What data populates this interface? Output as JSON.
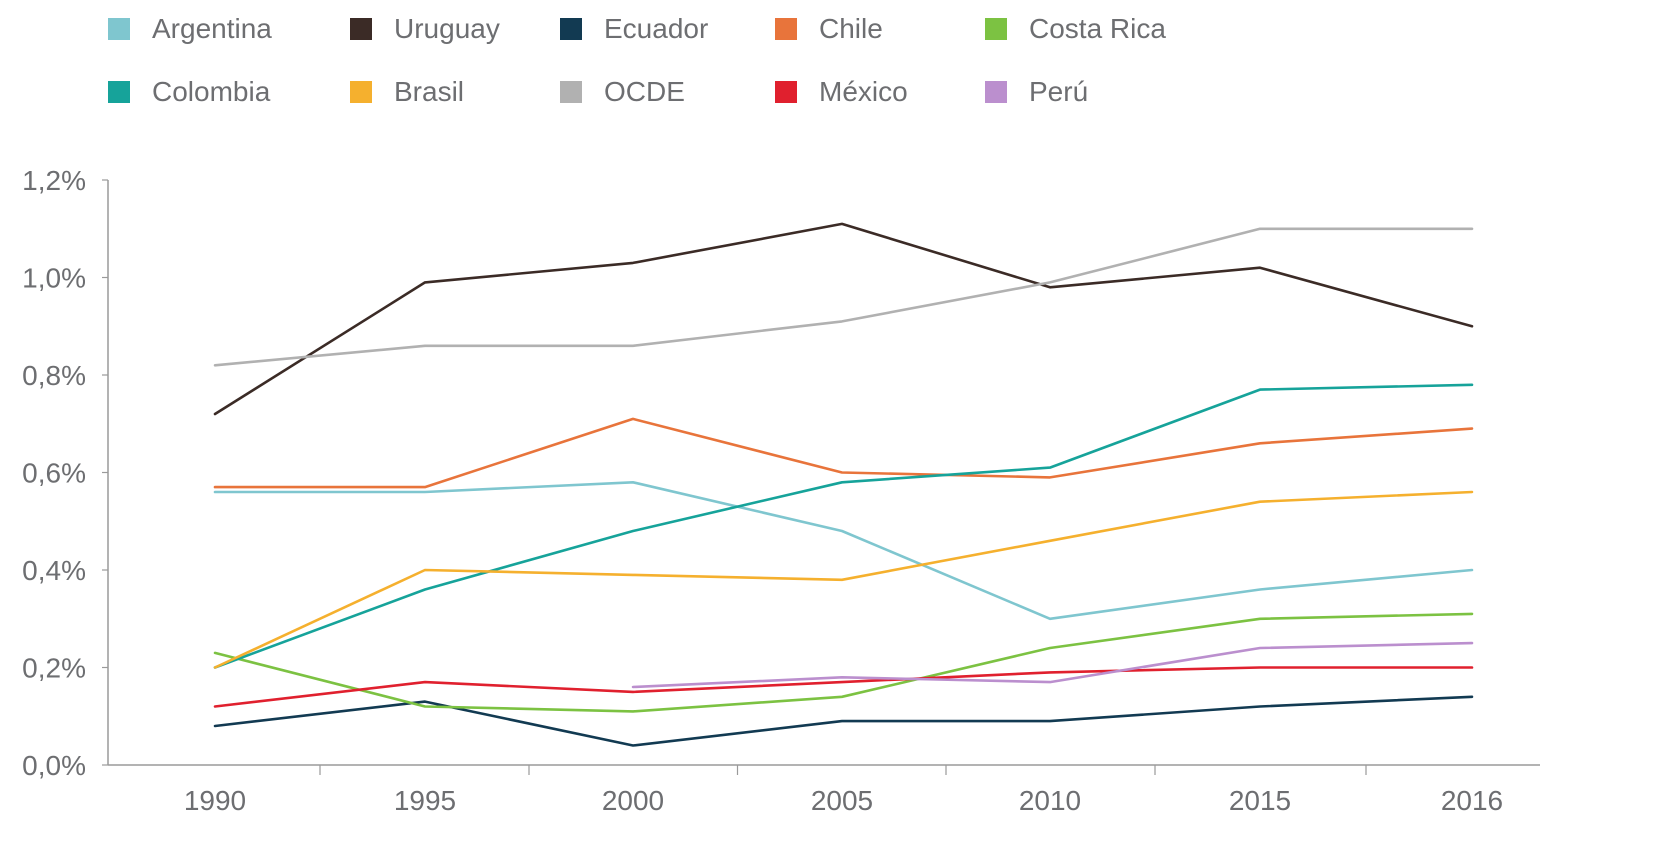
{
  "chart_data": {
    "type": "line",
    "title": "",
    "xlabel": "",
    "ylabel": "",
    "x": [
      "1990",
      "1995",
      "2000",
      "2005",
      "2010",
      "2015",
      "2016"
    ],
    "ylim": [
      0,
      1.2
    ],
    "yticks": [
      "0,0%",
      "0,2%",
      "0,4%",
      "0,6%",
      "0,8%",
      "1,0%",
      "1,2%"
    ],
    "grid": false,
    "legend_position": "top",
    "series": [
      {
        "name": "Argentina",
        "color": "#7fc6cf",
        "values": [
          0.56,
          0.56,
          0.58,
          0.48,
          0.3,
          0.36,
          0.4
        ]
      },
      {
        "name": "Uruguay",
        "color": "#3b2b26",
        "values": [
          0.72,
          0.99,
          1.03,
          1.11,
          0.98,
          1.02,
          0.9
        ]
      },
      {
        "name": "Ecuador",
        "color": "#123a52",
        "values": [
          0.08,
          0.13,
          0.04,
          0.09,
          0.09,
          0.12,
          0.14
        ]
      },
      {
        "name": "Chile",
        "color": "#e8743b",
        "values": [
          0.57,
          0.57,
          0.71,
          0.6,
          0.59,
          0.66,
          0.69
        ]
      },
      {
        "name": "Costa Rica",
        "color": "#7cc242",
        "values": [
          0.23,
          0.12,
          0.11,
          0.14,
          0.24,
          0.3,
          0.31
        ]
      },
      {
        "name": "Colombia",
        "color": "#16a39a",
        "values": [
          0.2,
          0.36,
          0.48,
          0.58,
          0.61,
          0.77,
          0.78
        ]
      },
      {
        "name": "Brasil",
        "color": "#f5b02e",
        "values": [
          0.2,
          0.4,
          0.39,
          0.38,
          0.46,
          0.54,
          0.56
        ]
      },
      {
        "name": "OCDE",
        "color": "#b1b1b1",
        "values": [
          0.82,
          0.86,
          0.86,
          0.91,
          0.99,
          1.1,
          1.1
        ]
      },
      {
        "name": "México",
        "color": "#e0202e",
        "values": [
          0.12,
          0.17,
          0.15,
          0.17,
          0.19,
          0.2,
          0.2
        ]
      },
      {
        "name": "Perú",
        "color": "#bb8fce",
        "values": [
          null,
          null,
          0.16,
          0.18,
          0.17,
          0.24,
          0.25
        ]
      }
    ]
  }
}
